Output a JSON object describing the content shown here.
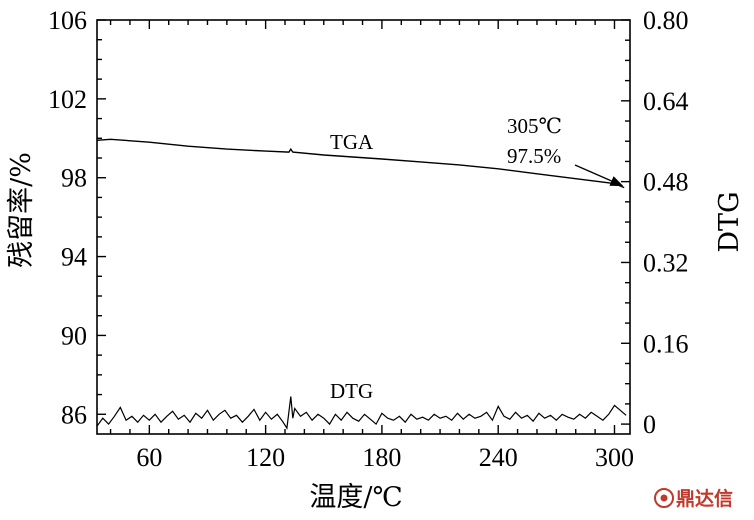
{
  "chart_data": {
    "type": "line",
    "title": "",
    "xlabel": "温度/℃",
    "ylabel_left": "残留率/%",
    "ylabel_right": "DTG",
    "xlim": [
      33,
      308
    ],
    "x_ticks": [
      60,
      120,
      180,
      240,
      300
    ],
    "y_left_lim": [
      85,
      106
    ],
    "y_left_ticks": [
      86,
      90,
      94,
      98,
      102,
      106
    ],
    "y_right_lim": [
      -0.0196,
      0.8
    ],
    "y_right_ticks": [
      "0",
      "0.16",
      "0.32",
      "0.48",
      "0.64",
      "0.80"
    ],
    "series": [
      {
        "name": "TGA",
        "axis": "left",
        "x": [
          33,
          40,
          60,
          80,
          100,
          120,
          132,
          133,
          134,
          150,
          180,
          200,
          220,
          240,
          260,
          280,
          300,
          305
        ],
        "y": [
          99.9,
          99.95,
          99.8,
          99.6,
          99.45,
          99.35,
          99.3,
          99.45,
          99.3,
          99.15,
          98.95,
          98.8,
          98.65,
          98.45,
          98.2,
          97.95,
          97.7,
          97.5
        ]
      },
      {
        "name": "DTG",
        "axis": "left",
        "x": [
          33,
          36,
          39,
          42,
          45,
          48,
          51,
          54,
          57,
          60,
          63,
          66,
          69,
          72,
          75,
          78,
          81,
          84,
          87,
          90,
          93,
          96,
          99,
          102,
          105,
          108,
          111,
          114,
          117,
          120,
          123,
          126,
          129,
          131,
          133,
          134,
          135,
          138,
          141,
          144,
          147,
          150,
          153,
          156,
          159,
          162,
          165,
          168,
          171,
          174,
          177,
          180,
          183,
          186,
          189,
          192,
          195,
          198,
          201,
          204,
          207,
          210,
          213,
          216,
          219,
          222,
          225,
          228,
          231,
          234,
          237,
          240,
          243,
          246,
          249,
          252,
          255,
          258,
          261,
          264,
          267,
          270,
          273,
          276,
          279,
          282,
          285,
          288,
          291,
          294,
          297,
          300,
          303,
          306
        ],
        "y": [
          85.4,
          85.8,
          85.5,
          85.9,
          86.35,
          85.7,
          85.9,
          85.6,
          85.95,
          85.7,
          86.0,
          85.6,
          85.9,
          86.15,
          85.75,
          85.95,
          85.6,
          86.05,
          85.8,
          86.2,
          85.7,
          86.0,
          86.2,
          85.8,
          85.95,
          85.6,
          85.9,
          86.25,
          85.7,
          86.1,
          85.75,
          86.0,
          85.6,
          85.3,
          86.9,
          85.8,
          86.3,
          85.9,
          86.1,
          85.7,
          86.0,
          85.8,
          85.5,
          86.0,
          85.7,
          86.1,
          85.8,
          85.65,
          86.0,
          85.75,
          85.5,
          86.05,
          85.8,
          85.7,
          85.9,
          85.6,
          86.0,
          85.75,
          85.85,
          85.7,
          86.0,
          85.8,
          85.9,
          85.7,
          86.05,
          85.75,
          86.0,
          85.8,
          85.9,
          86.1,
          85.7,
          86.4,
          85.9,
          85.75,
          86.1,
          85.8,
          85.95,
          85.65,
          86.05,
          85.8,
          85.95,
          85.7,
          86.0,
          85.85,
          85.75,
          86.0,
          85.8,
          86.1,
          85.9,
          85.7,
          86.0,
          86.45,
          86.2,
          85.95
        ]
      }
    ],
    "annotations": {
      "tga_label": "TGA",
      "dtg_label": "DTG",
      "point_temp": "305℃",
      "point_value": "97.5%",
      "point_x": 305,
      "point_y": 97.5
    }
  },
  "watermark": {
    "text": "鼎达信",
    "color": "#c0392b"
  }
}
